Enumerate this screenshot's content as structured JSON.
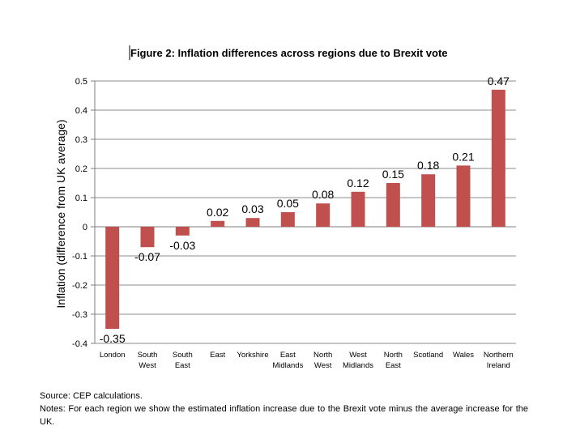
{
  "chart_data": {
    "type": "bar",
    "title": "Figure 2: Inflation differences across regions due to Brexit vote",
    "ylabel": "Inflation (difference from UK average)",
    "xlabel": "",
    "ylim": [
      -0.4,
      0.5
    ],
    "yticks": [
      "0.5",
      "0.4",
      "0.3",
      "0.2",
      "0.1",
      "0",
      "-0.1",
      "-0.2",
      "-0.3",
      "-0.4"
    ],
    "ytick_values": [
      0.5,
      0.4,
      0.3,
      0.2,
      0.1,
      0,
      -0.1,
      -0.2,
      -0.3,
      -0.4
    ],
    "grid": true,
    "bar_color": "#c0504d",
    "categories": [
      [
        "London"
      ],
      [
        "South",
        "West"
      ],
      [
        "South",
        "East"
      ],
      [
        "East"
      ],
      [
        "Yorkshire"
      ],
      [
        "East",
        "Midlands"
      ],
      [
        "North",
        "West"
      ],
      [
        "West",
        "Midlands"
      ],
      [
        "North",
        "East"
      ],
      [
        "Scotland"
      ],
      [
        "Wales"
      ],
      [
        "Northern",
        "Ireland"
      ]
    ],
    "values": [
      -0.35,
      -0.07,
      -0.03,
      0.02,
      0.03,
      0.05,
      0.08,
      0.12,
      0.15,
      0.18,
      0.21,
      0.47
    ],
    "data_labels": [
      "-0.35",
      "-0.07",
      "-0.03",
      "0.02",
      "0.03",
      "0.05",
      "0.08",
      "0.12",
      "0.15",
      "0.18",
      "0.21",
      "0.47"
    ]
  },
  "notes": {
    "source": "Source: CEP calculations.",
    "text": "Notes: For each region we show the estimated inflation increase due to the Brexit vote minus the average increase for the UK."
  }
}
